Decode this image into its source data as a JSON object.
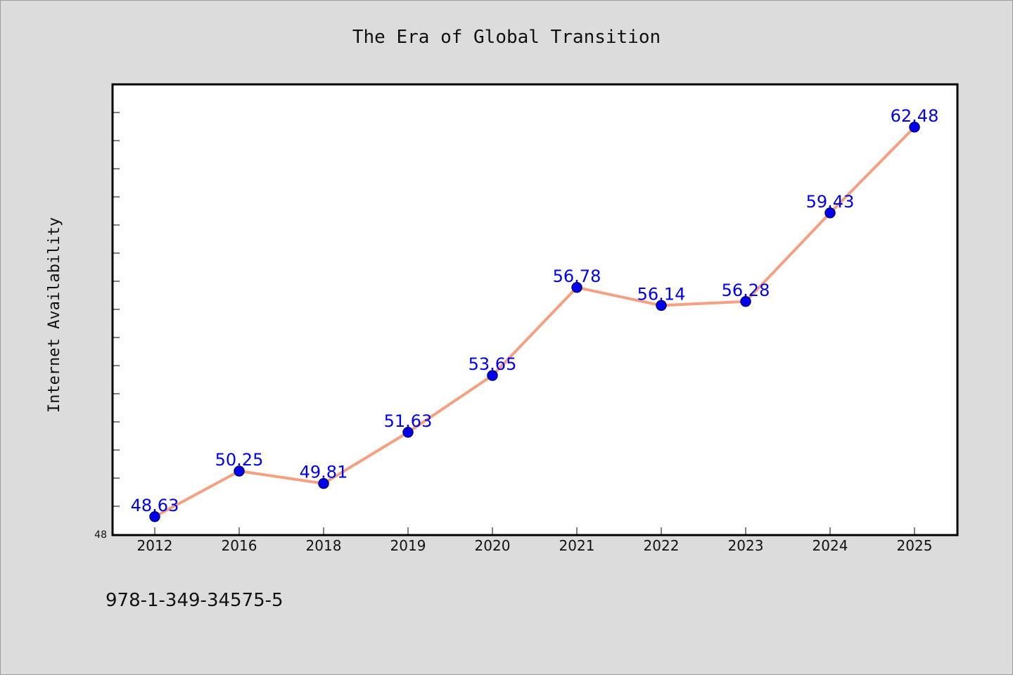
{
  "chart_data": {
    "type": "line",
    "title": "The Era of Global Transition",
    "xlabel": "",
    "ylabel": "Internet Availability",
    "categories": [
      "2012",
      "2016",
      "2018",
      "2019",
      "2020",
      "2021",
      "2022",
      "2023",
      "2024",
      "2025"
    ],
    "series": [
      {
        "values": [
          48.63,
          50.25,
          49.81,
          51.63,
          53.65,
          56.78,
          56.14,
          56.28,
          59.43,
          62.48
        ]
      }
    ],
    "ylim": [
      48,
      64
    ],
    "yticks_labeled": [
      "48"
    ],
    "grid": false,
    "legend": "none",
    "colors": {
      "line": "#f4a081",
      "marker": "#0000ee",
      "marker_edge": "#00006e",
      "data_label": "#0000ee",
      "background": "#dcdcdc",
      "plot_background": "#ffffff"
    }
  },
  "footnote": "978-1-349-34575-5"
}
